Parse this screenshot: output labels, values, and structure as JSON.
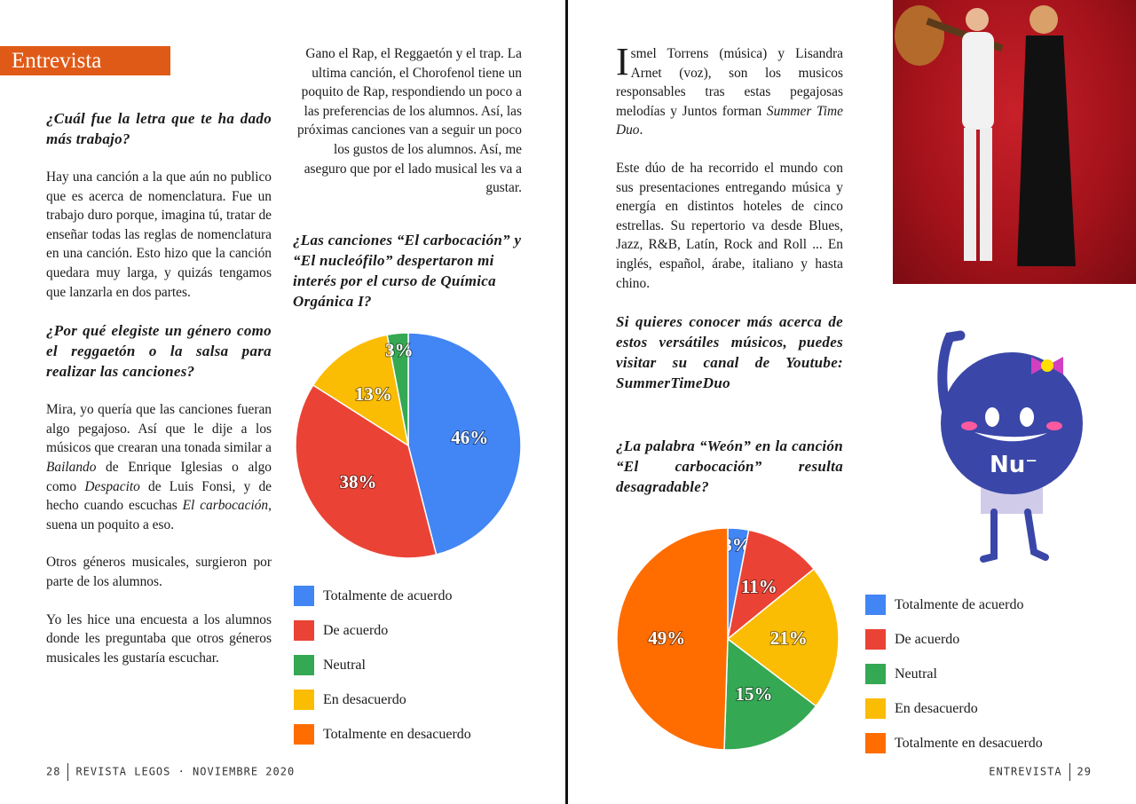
{
  "section_tag": "Entrevista",
  "left_column": [
    {
      "type": "q",
      "segs": [
        {
          "t": "¿Cuál fue la letra que te ha dado más trabajo?"
        }
      ]
    },
    {
      "type": "p",
      "segs": [
        {
          "t": "Hay una canción a la que aún no publico que es acerca de nomenclatura. Fue un trabajo duro porque, imagina tú, tratar de enseñar todas las reglas de nomenclatura en una canción. Esto hizo que la canción quedara muy larga, y quizás tengamos que lanzarla en dos partes."
        }
      ]
    },
    {
      "type": "q",
      "segs": [
        {
          "t": "¿Por qué elegiste un género como el reggaetón o la salsa para realizar las canciones?"
        }
      ]
    },
    {
      "type": "p",
      "segs": [
        {
          "t": "Mira, yo quería que las canciones fueran algo pegajoso. Así que le dije a los músicos que crearan una tonada similar a "
        },
        {
          "t": "Bailando",
          "i": true
        },
        {
          "t": " de Enrique Iglesias o algo como "
        },
        {
          "t": "Despacito",
          "i": true
        },
        {
          "t": " de Luis Fonsi, y de hecho cuando escuchas "
        },
        {
          "t": "El carbocación",
          "i": true
        },
        {
          "t": ", suena un poquito a eso."
        }
      ]
    },
    {
      "type": "p",
      "segs": [
        {
          "t": "Otros géneros musicales, surgieron por parte de los alumnos."
        }
      ]
    },
    {
      "type": "p",
      "segs": [
        {
          "t": "Yo les hice una encuesta a los alumnos donde les preguntaba que otros géneros musicales les gustaría escuchar."
        }
      ]
    }
  ],
  "middle_column": [
    {
      "type": "p",
      "segs": [
        {
          "t": "Gano el Rap, el Reggaetón y el trap. La ultima canción, el Chorofenol tiene un poquito de Rap, respondiendo un poco a las preferencias de los alumnos.  Así,  las próximas canciones van a seguir un poco los gustos de los alumnos. Así, me aseguro que por el lado musical les va a gustar."
        }
      ]
    },
    {
      "type": "q",
      "segs": [
        {
          "t": "¿Las canciones “El carbocación” y “El nucleófilo” despertaron mi interés por el curso de Química Orgánica I?"
        }
      ]
    }
  ],
  "right_column": [
    {
      "type": "p",
      "dropcap": "I",
      "segs": [
        {
          "t": "smel Torrens (música) y Lisandra Arnet (voz), son los musicos responsables tras estas pegajosas melodías y Juntos forman "
        },
        {
          "t": "Summer Time Duo",
          "i": true
        },
        {
          "t": "."
        }
      ]
    },
    {
      "type": "p",
      "segs": [
        {
          "t": "Este dúo de ha recorrido el mundo con sus presentaciones entregando música y energía en distintos hoteles de cinco estrellas. Su repertorio va desde Blues, Jazz, R&B, Latín, Rock and Roll ... En inglés, español, árabe, italiano y hasta chino."
        }
      ]
    },
    {
      "type": "q",
      "segs": [
        {
          "t": "Si quieres conocer más acerca de estos versátiles músicos, puedes visitar su canal de Youtube: SummerTimeDuo"
        }
      ]
    },
    {
      "type": "q",
      "segs": [
        {
          "t": "¿La palabra “Weón” en la canción “El carbocación” resulta desagradable?"
        }
      ]
    }
  ],
  "legend": [
    {
      "label": "Totalmente de acuerdo",
      "color": "#4285f4"
    },
    {
      "label": "De acuerdo",
      "color": "#ea4335"
    },
    {
      "label": "Neutral",
      "color": "#34a853"
    },
    {
      "label": "En desacuerdo",
      "color": "#fbbc04"
    },
    {
      "label": "Totalmente en desacuerdo",
      "color": "#ff6d01"
    }
  ],
  "chart_data": [
    {
      "type": "pie",
      "categories": [
        "Totalmente de acuerdo",
        "De acuerdo",
        "En desacuerdo",
        "Neutral"
      ],
      "values": [
        46,
        38,
        13,
        3
      ],
      "labels": [
        "46%",
        "38%",
        "13%",
        "3%"
      ],
      "colors": [
        "#4285f4",
        "#ea4335",
        "#fbbc04",
        "#34a853"
      ]
    },
    {
      "type": "pie",
      "categories": [
        "Totalmente de acuerdo",
        "De acuerdo",
        "En desacuerdo",
        "Neutral",
        "Totalmente en desacuerdo"
      ],
      "values": [
        3,
        11,
        21,
        15,
        49
      ],
      "labels": [
        "3%",
        "11%",
        "21%",
        "15%",
        "49%"
      ],
      "colors": [
        "#4285f4",
        "#ea4335",
        "#fbbc04",
        "#34a853",
        "#ff6d01"
      ]
    }
  ],
  "footer": {
    "left_page": "28",
    "left_text": "REVISTA LEGOS · NOVIEMBRE 2020",
    "right_text": "ENTREVISTA",
    "right_page": "29"
  },
  "mascot": {
    "text": "Nu⁻"
  }
}
